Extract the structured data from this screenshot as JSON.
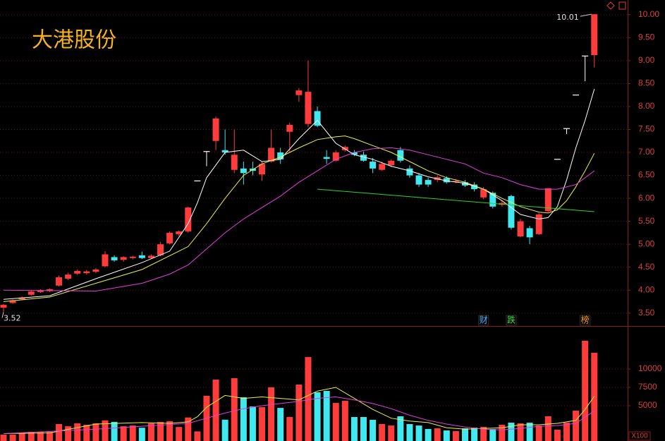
{
  "chart_data": [
    {
      "type": "candlestick",
      "title": "大港股份",
      "open": [
        3.62,
        3.72,
        3.8,
        3.9,
        3.96,
        3.98,
        4.1,
        4.25,
        4.36,
        4.37,
        4.4,
        4.52,
        4.72,
        4.66,
        4.7,
        4.76,
        4.7,
        4.76,
        5.02,
        5.22,
        5.28,
        6.38,
        7.02,
        7.25,
        7.05,
        6.62,
        6.65,
        6.65,
        6.52,
        6.8,
        7.0,
        7.45,
        8.25,
        7.62,
        7.9,
        6.9,
        6.82,
        7.05,
        7.0,
        6.95,
        6.8,
        6.62,
        6.72,
        7.05,
        6.65,
        6.5,
        6.4,
        6.4,
        6.44,
        6.36,
        6.35,
        6.3,
        6.02,
        6.12,
        5.86,
        6.05,
        5.17,
        5.35,
        5.22,
        5.72,
        6.85,
        7.52,
        8.25,
        9.1,
        9.12
      ],
      "high": [
        3.7,
        3.8,
        3.86,
        3.99,
        4.02,
        4.04,
        4.32,
        4.38,
        4.45,
        4.44,
        4.48,
        4.85,
        4.76,
        4.74,
        4.75,
        4.84,
        4.78,
        5.05,
        5.28,
        5.3,
        5.82,
        6.38,
        7.02,
        7.78,
        7.5,
        7.5,
        6.8,
        6.8,
        6.8,
        7.5,
        7.1,
        7.65,
        8.4,
        9.0,
        8.0,
        7.05,
        7.05,
        7.15,
        7.05,
        7.02,
        6.88,
        6.8,
        6.85,
        7.12,
        6.72,
        6.55,
        6.45,
        6.5,
        6.48,
        6.42,
        6.4,
        6.35,
        6.25,
        6.15,
        5.95,
        6.08,
        5.55,
        5.4,
        5.68,
        6.22,
        6.85,
        7.52,
        8.25,
        9.1,
        10.01
      ],
      "low": [
        3.52,
        3.7,
        3.78,
        3.88,
        3.94,
        3.96,
        4.08,
        4.22,
        4.33,
        4.34,
        4.37,
        4.5,
        4.62,
        4.62,
        4.67,
        4.68,
        4.68,
        4.74,
        5.0,
        5.18,
        5.25,
        6.38,
        6.7,
        7.05,
        6.95,
        6.55,
        6.3,
        6.5,
        6.38,
        6.78,
        6.75,
        7.0,
        8.1,
        7.55,
        7.55,
        6.75,
        6.8,
        7.02,
        6.92,
        6.8,
        6.55,
        6.6,
        6.68,
        6.78,
        6.45,
        6.25,
        6.25,
        6.35,
        6.32,
        6.33,
        6.25,
        6.15,
        5.98,
        5.78,
        5.82,
        5.32,
        5.15,
        5.0,
        5.2,
        5.7,
        6.85,
        7.4,
        8.25,
        8.55,
        8.85
      ],
      "close": [
        3.68,
        3.78,
        3.84,
        3.97,
        4.0,
        4.02,
        4.28,
        4.34,
        4.42,
        4.41,
        4.45,
        4.78,
        4.65,
        4.72,
        4.73,
        4.7,
        4.75,
        5.0,
        5.25,
        5.28,
        5.8,
        6.38,
        7.02,
        7.74,
        7.0,
        6.95,
        6.55,
        6.6,
        6.75,
        7.1,
        6.85,
        7.6,
        8.35,
        8.32,
        7.58,
        6.86,
        7.0,
        7.12,
        6.95,
        6.82,
        6.65,
        6.75,
        6.82,
        6.82,
        6.5,
        6.3,
        6.3,
        6.46,
        6.35,
        6.38,
        6.28,
        6.2,
        6.2,
        5.82,
        5.9,
        5.36,
        5.5,
        5.15,
        5.65,
        6.22,
        6.85,
        7.52,
        8.25,
        9.1,
        10.01
      ],
      "up_color": "#ff3c3c",
      "down_color": "#40e8f0",
      "flat_color": "#ffffff",
      "ylim": [
        3.22,
        10.32
      ],
      "yticks": [
        {
          "value": 3.5,
          "label": "3.50"
        },
        {
          "value": 4,
          "label": "4.00"
        },
        {
          "value": 4.5,
          "label": "4.50"
        },
        {
          "value": 5,
          "label": "5.00"
        },
        {
          "value": 5.5,
          "label": "5.50"
        },
        {
          "value": 6,
          "label": "6.00"
        },
        {
          "value": 6.5,
          "label": "6.50"
        },
        {
          "value": 7,
          "label": "7.00"
        },
        {
          "value": 7.5,
          "label": "7.50"
        },
        {
          "value": 8,
          "label": "8.00"
        },
        {
          "value": 8.5,
          "label": "8.50"
        },
        {
          "value": 9,
          "label": "9.00"
        },
        {
          "value": 9.5,
          "label": "9.50"
        },
        {
          "value": 10,
          "label": "10.00"
        }
      ],
      "grid": true,
      "lines": [
        {
          "color": "#ffffff",
          "x": [
            0,
            5,
            10,
            15,
            18,
            20,
            21,
            22,
            24,
            26,
            28,
            30,
            32,
            34,
            36,
            38,
            40,
            42,
            44,
            46,
            48,
            50,
            52,
            54,
            56,
            58,
            59,
            60,
            61,
            62,
            63,
            64
          ],
          "values": [
            3.8,
            3.88,
            4.25,
            4.6,
            4.85,
            5.45,
            5.9,
            6.45,
            7.0,
            7.05,
            6.8,
            6.85,
            7.3,
            7.7,
            7.2,
            6.95,
            6.85,
            6.7,
            6.6,
            6.47,
            6.38,
            6.33,
            6.2,
            5.95,
            5.65,
            5.55,
            5.58,
            5.82,
            6.4,
            7.1,
            7.7,
            8.38
          ]
        },
        {
          "color": "#f0f040",
          "x": [
            0,
            5,
            10,
            15,
            20,
            22,
            24,
            26,
            28,
            30,
            32,
            34,
            36,
            37,
            38,
            40,
            42,
            44,
            46,
            48,
            50,
            52,
            54,
            56,
            58,
            59,
            60,
            61,
            62,
            63,
            64
          ],
          "values": [
            3.75,
            3.85,
            4.15,
            4.45,
            4.95,
            5.45,
            6.0,
            6.5,
            6.75,
            6.9,
            7.1,
            7.28,
            7.34,
            7.36,
            7.3,
            7.15,
            7.0,
            6.8,
            6.6,
            6.45,
            6.35,
            6.2,
            6.0,
            5.82,
            5.7,
            5.68,
            5.75,
            5.95,
            6.25,
            6.6,
            6.98
          ]
        },
        {
          "color": "#e040e0",
          "x": [
            0,
            10,
            15,
            18,
            20,
            22,
            24,
            26,
            28,
            30,
            32,
            34,
            36,
            38,
            40,
            42,
            44,
            46,
            48,
            50,
            52,
            54,
            56,
            58,
            60,
            62,
            64
          ],
          "values": [
            4.0,
            3.98,
            4.15,
            4.35,
            4.55,
            4.9,
            5.25,
            5.55,
            5.8,
            6.05,
            6.35,
            6.6,
            6.85,
            7.0,
            7.08,
            7.1,
            7.05,
            6.95,
            6.85,
            6.75,
            6.55,
            6.45,
            6.3,
            6.2,
            6.2,
            6.3,
            6.6
          ]
        },
        {
          "color": "#30d030",
          "x": [
            34,
            64
          ],
          "values": [
            6.2,
            5.71
          ]
        }
      ],
      "high_label": 10.01,
      "low_label": 3.52,
      "events": [
        {
          "index": 52,
          "label": "财",
          "color": "#5ab4ff"
        },
        {
          "index": 55,
          "label": "跌",
          "color": "#40e040"
        },
        {
          "index": 63,
          "label": "榜",
          "color": "#ffa020"
        }
      ]
    },
    {
      "type": "bar",
      "values": [
        1060,
        1060,
        1250,
        1440,
        1440,
        1440,
        2500,
        2200,
        2600,
        2400,
        2600,
        3000,
        2800,
        2200,
        2300,
        2000,
        2600,
        2800,
        2900,
        2100,
        3400,
        1500,
        6350,
        8560,
        3100,
        8750,
        6150,
        4900,
        4800,
        7500,
        4700,
        3460,
        7880,
        11630,
        6830,
        7020,
        5380,
        5670,
        3460,
        3460,
        3080,
        2500,
        2300,
        3560,
        2500,
        2300,
        1830,
        1920,
        1630,
        1540,
        1920,
        2020,
        2110,
        1830,
        2400,
        2690,
        2600,
        2690,
        2300,
        3560,
        1730,
        2690,
        4330,
        13850,
        12210
      ],
      "ylim": [
        0,
        15770
      ],
      "yticks": [
        5000,
        7500,
        10000
      ],
      "grid": true,
      "unit_label": "X100",
      "lines": [
        {
          "color": "#f0f040",
          "x": [
            0,
            5,
            10,
            15,
            18,
            20,
            21,
            22,
            24,
            26,
            28,
            30,
            32,
            34,
            36,
            38,
            40,
            42,
            44,
            46,
            48,
            50,
            52,
            54,
            56,
            58,
            60,
            62,
            63,
            64
          ],
          "values": [
            1200,
            1300,
            2500,
            2700,
            2600,
            2800,
            3500,
            4800,
            6400,
            6000,
            6200,
            6000,
            5800,
            7000,
            7500,
            6000,
            4500,
            3300,
            2900,
            2700,
            2000,
            1800,
            1900,
            2000,
            2400,
            2400,
            2600,
            3000,
            4500,
            6300
          ]
        },
        {
          "color": "#e040e0",
          "x": [
            0,
            10,
            15,
            20,
            22,
            24,
            26,
            28,
            30,
            32,
            34,
            36,
            38,
            40,
            42,
            44,
            46,
            48,
            50,
            52,
            54,
            56,
            58,
            60,
            62,
            64
          ],
          "values": [
            1200,
            1800,
            2200,
            2600,
            3300,
            4000,
            4600,
            5000,
            5300,
            5600,
            6000,
            6200,
            5800,
            5300,
            4600,
            3700,
            3000,
            2500,
            2100,
            1800,
            1700,
            1900,
            2200,
            2300,
            2600,
            4300
          ]
        }
      ]
    }
  ]
}
